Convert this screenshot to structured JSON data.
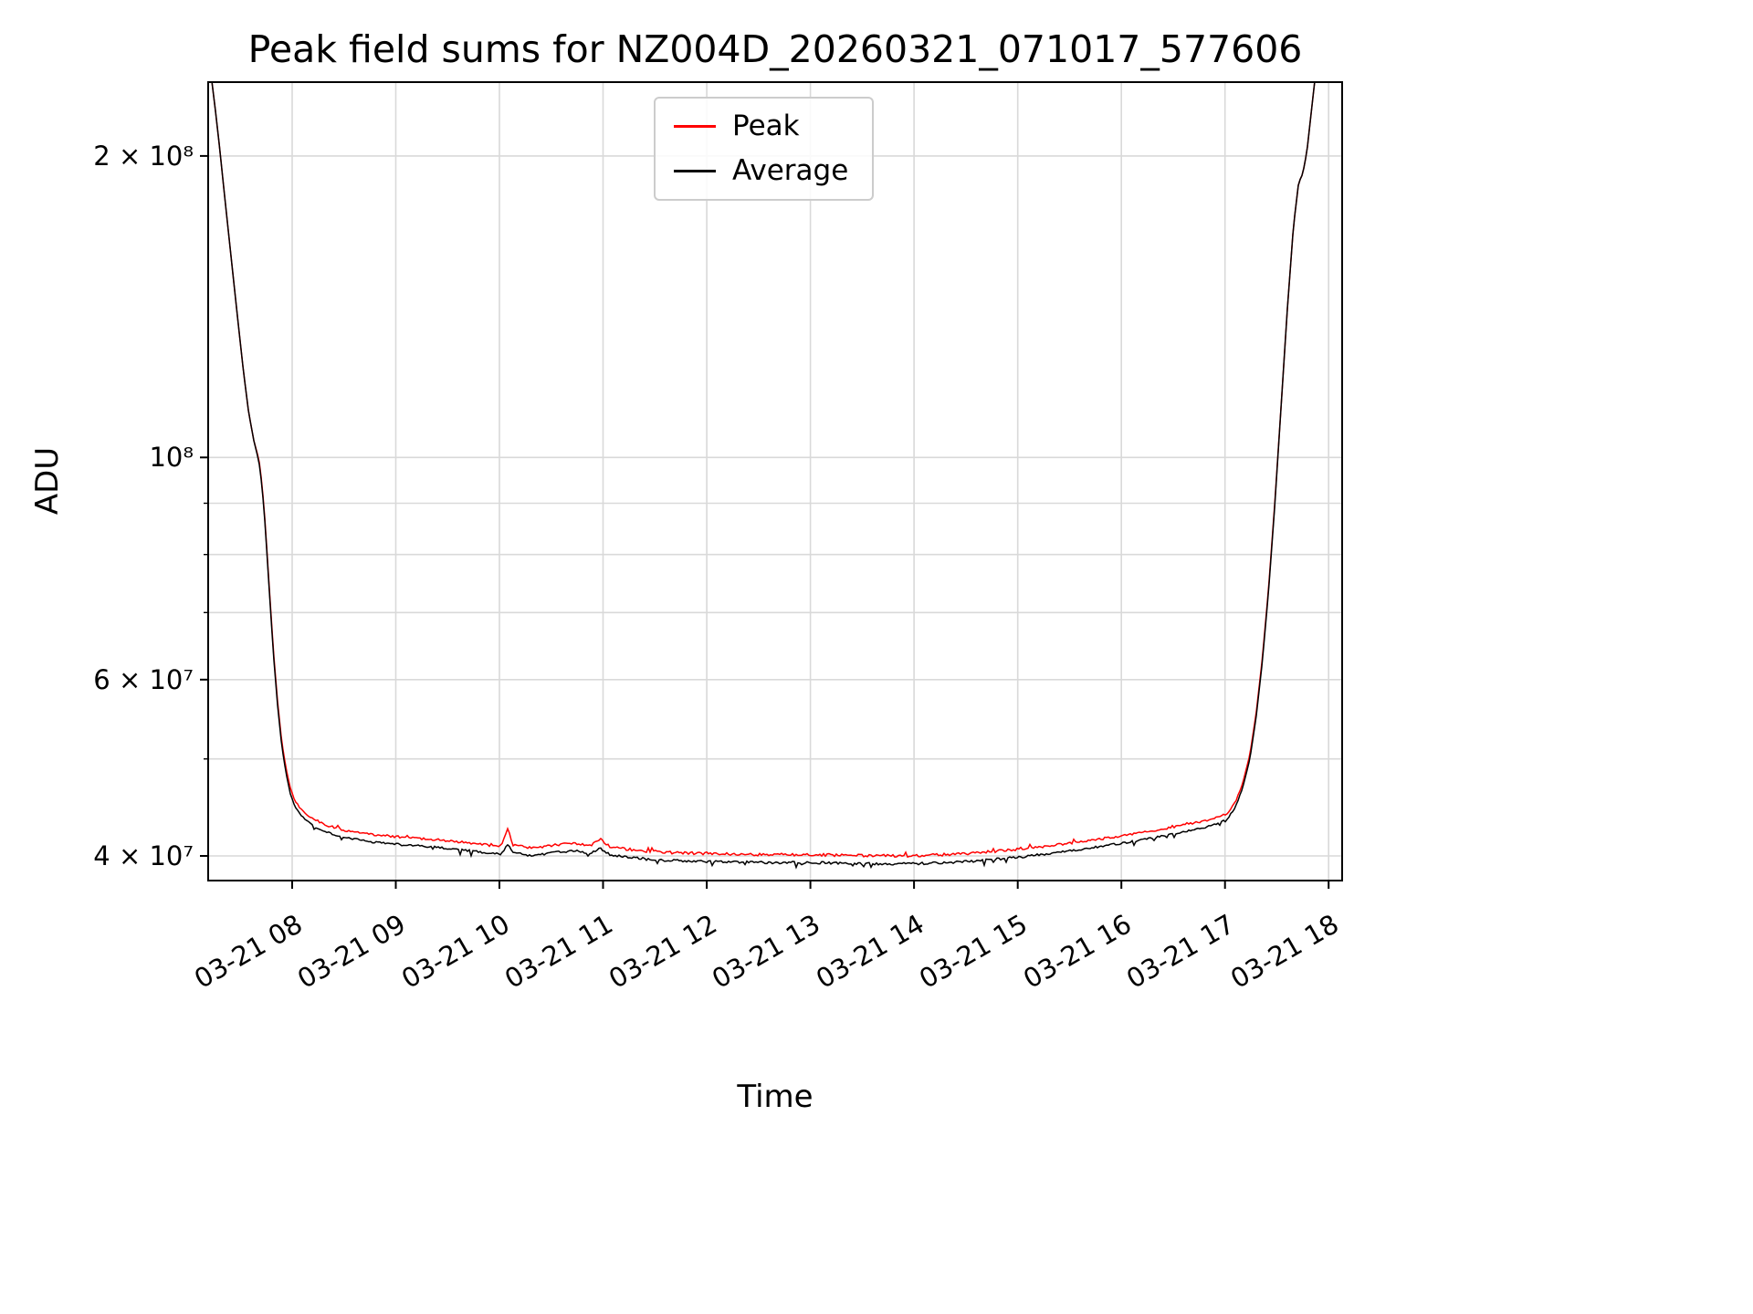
{
  "chart_data": {
    "type": "line",
    "title": "Peak field sums for NZ004D_20260321_071017_577606",
    "xlabel": "Time",
    "ylabel": "ADU",
    "yscale": "log",
    "grid": true,
    "legend_position": "upper center",
    "x_unit": "hours on 03-21",
    "x_range": [
      7.19,
      18.13
    ],
    "y_range": [
      37800000.0,
      237000000.0
    ],
    "x_ticks": [
      {
        "t": 8,
        "label": "03-21 08"
      },
      {
        "t": 9,
        "label": "03-21 09"
      },
      {
        "t": 10,
        "label": "03-21 10"
      },
      {
        "t": 11,
        "label": "03-21 11"
      },
      {
        "t": 12,
        "label": "03-21 12"
      },
      {
        "t": 13,
        "label": "03-21 13"
      },
      {
        "t": 14,
        "label": "03-21 14"
      },
      {
        "t": 15,
        "label": "03-21 15"
      },
      {
        "t": 16,
        "label": "03-21 16"
      },
      {
        "t": 17,
        "label": "03-21 17"
      },
      {
        "t": 18,
        "label": "03-21 18"
      }
    ],
    "y_ticks": [
      {
        "v": 200000000.0,
        "label": "2 × 10⁸"
      },
      {
        "v": 100000000.0,
        "label": "10⁸"
      },
      {
        "v": 60000000.0,
        "label": "6 × 10⁷"
      },
      {
        "v": 40000000.0,
        "label": "4 × 10⁷"
      }
    ],
    "y_minor_ticks": [
      50000000.0,
      70000000.0,
      80000000.0,
      90000000.0
    ],
    "y_gridlines": [
      200000000.0,
      100000000.0,
      90000000.0,
      80000000.0,
      70000000.0,
      60000000.0,
      50000000.0,
      40000000.0
    ],
    "series": [
      {
        "name": "Peak",
        "color": "#ff0000",
        "points": [
          [
            7.19,
            255000000.0
          ],
          [
            7.22,
            240000000.0
          ],
          [
            7.26,
            222000000.0
          ],
          [
            7.3,
            204000000.0
          ],
          [
            7.34,
            186000000.0
          ],
          [
            7.38,
            170000000.0
          ],
          [
            7.43,
            152000000.0
          ],
          [
            7.48,
            136000000.0
          ],
          [
            7.53,
            122000000.0
          ],
          [
            7.58,
            111000000.0
          ],
          [
            7.63,
            104000000.0
          ],
          [
            7.68,
            99500000.0
          ],
          [
            7.71,
            94000000.0
          ],
          [
            7.74,
            86000000.0
          ],
          [
            7.78,
            74000000.0
          ],
          [
            7.82,
            64000000.0
          ],
          [
            7.86,
            57000000.0
          ],
          [
            7.9,
            52000000.0
          ],
          [
            7.94,
            49000000.0
          ],
          [
            7.98,
            46800000.0
          ],
          [
            8.02,
            45500000.0
          ],
          [
            8.07,
            44700000.0
          ],
          [
            8.12,
            44100000.0
          ],
          [
            8.22,
            43300000.0
          ],
          [
            8.37,
            42700000.0
          ],
          [
            8.52,
            42300000.0
          ],
          [
            8.77,
            41900000.0
          ],
          [
            9.02,
            41700000.0
          ],
          [
            9.27,
            41500000.0
          ],
          [
            9.52,
            41300000.0
          ],
          [
            9.77,
            41000000.0
          ],
          [
            10.02,
            40800000.0
          ],
          [
            10.08,
            42500000.0
          ],
          [
            10.13,
            40900000.0
          ],
          [
            10.32,
            40600000.0
          ],
          [
            10.52,
            40900000.0
          ],
          [
            10.72,
            41100000.0
          ],
          [
            10.87,
            40800000.0
          ],
          [
            10.97,
            41500000.0
          ],
          [
            11.07,
            40700000.0
          ],
          [
            11.32,
            40400000.0
          ],
          [
            11.62,
            40200000.0
          ],
          [
            12.02,
            40100000.0
          ],
          [
            12.52,
            40000000.0
          ],
          [
            13.02,
            40000000.0
          ],
          [
            13.52,
            39900000.0
          ],
          [
            14.02,
            39900000.0
          ],
          [
            14.52,
            40100000.0
          ],
          [
            15.02,
            40500000.0
          ],
          [
            15.52,
            41100000.0
          ],
          [
            16.02,
            41800000.0
          ],
          [
            16.42,
            42500000.0
          ],
          [
            16.82,
            43300000.0
          ],
          [
            17.02,
            44000000.0
          ],
          [
            17.1,
            45200000.0
          ],
          [
            17.17,
            47200000.0
          ],
          [
            17.24,
            50500000.0
          ],
          [
            17.3,
            55500000.0
          ],
          [
            17.36,
            63000000.0
          ],
          [
            17.42,
            74000000.0
          ],
          [
            17.48,
            90000000.0
          ],
          [
            17.54,
            112000000.0
          ],
          [
            17.6,
            140000000.0
          ],
          [
            17.66,
            170000000.0
          ],
          [
            17.71,
            188000000.0
          ],
          [
            17.75,
            192000000.0
          ],
          [
            17.79,
            202000000.0
          ],
          [
            17.84,
            225000000.0
          ],
          [
            17.89,
            250000000.0
          ]
        ]
      },
      {
        "name": "Average",
        "color": "#000000",
        "points": [
          [
            7.19,
            255000000.0
          ],
          [
            7.22,
            240000000.0
          ],
          [
            7.26,
            222000000.0
          ],
          [
            7.3,
            204000000.0
          ],
          [
            7.34,
            186000000.0
          ],
          [
            7.38,
            170000000.0
          ],
          [
            7.43,
            152000000.0
          ],
          [
            7.48,
            136000000.0
          ],
          [
            7.53,
            122000000.0
          ],
          [
            7.58,
            111000000.0
          ],
          [
            7.63,
            104000000.0
          ],
          [
            7.68,
            99000000.0
          ],
          [
            7.71,
            93500000.0
          ],
          [
            7.74,
            85500000.0
          ],
          [
            7.78,
            73500000.0
          ],
          [
            7.82,
            63500000.0
          ],
          [
            7.86,
            56500000.0
          ],
          [
            7.9,
            51500000.0
          ],
          [
            7.94,
            48500000.0
          ],
          [
            7.98,
            46300000.0
          ],
          [
            8.02,
            45000000.0
          ],
          [
            8.07,
            44200000.0
          ],
          [
            8.12,
            43600000.0
          ],
          [
            8.22,
            42800000.0
          ],
          [
            8.37,
            42200000.0
          ],
          [
            8.52,
            41800000.0
          ],
          [
            8.77,
            41400000.0
          ],
          [
            9.02,
            41200000.0
          ],
          [
            9.27,
            41000000.0
          ],
          [
            9.52,
            40800000.0
          ],
          [
            9.77,
            40500000.0
          ],
          [
            10.02,
            40300000.0
          ],
          [
            10.08,
            41200000.0
          ],
          [
            10.13,
            40400000.0
          ],
          [
            10.32,
            40100000.0
          ],
          [
            10.52,
            40400000.0
          ],
          [
            10.72,
            40600000.0
          ],
          [
            10.87,
            40300000.0
          ],
          [
            10.97,
            40800000.0
          ],
          [
            11.07,
            40200000.0
          ],
          [
            11.32,
            39900000.0
          ],
          [
            11.62,
            39700000.0
          ],
          [
            12.02,
            39600000.0
          ],
          [
            12.52,
            39500000.0
          ],
          [
            13.02,
            39500000.0
          ],
          [
            13.52,
            39400000.0
          ],
          [
            14.02,
            39400000.0
          ],
          [
            14.52,
            39600000.0
          ],
          [
            15.02,
            40000000.0
          ],
          [
            15.52,
            40600000.0
          ],
          [
            16.02,
            41300000.0
          ],
          [
            16.42,
            42000000.0
          ],
          [
            16.82,
            42800000.0
          ],
          [
            17.02,
            43600000.0
          ],
          [
            17.1,
            44800000.0
          ],
          [
            17.17,
            46800000.0
          ],
          [
            17.24,
            50000000.0
          ],
          [
            17.3,
            55000000.0
          ],
          [
            17.36,
            62500000.0
          ],
          [
            17.42,
            73500000.0
          ],
          [
            17.48,
            89500000.0
          ],
          [
            17.54,
            112000000.0
          ],
          [
            17.6,
            140000000.0
          ],
          [
            17.66,
            170000000.0
          ],
          [
            17.71,
            188000000.0
          ],
          [
            17.75,
            192000000.0
          ],
          [
            17.79,
            202000000.0
          ],
          [
            17.84,
            225000000.0
          ],
          [
            17.89,
            250000000.0
          ]
        ]
      }
    ],
    "noise": {
      "peak_up_frac": 0.0065,
      "avg_down_frac": 0.0055,
      "applies_below": 50000000.0
    }
  }
}
